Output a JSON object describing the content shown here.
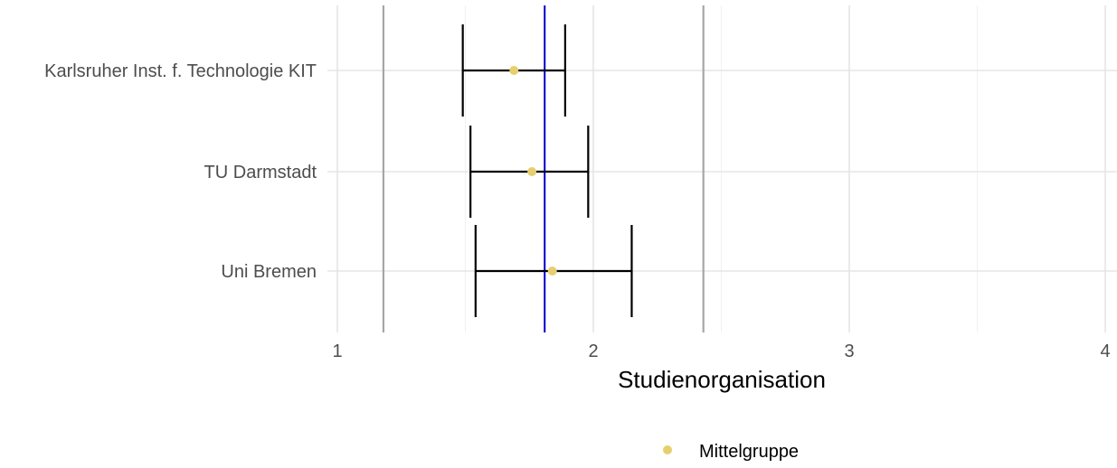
{
  "chart_data": {
    "type": "errorbar",
    "title": "",
    "xlabel": "Studienorganisation",
    "ylabel": "",
    "xlim": [
      1,
      4
    ],
    "x_ticks": [
      1,
      2,
      3,
      4
    ],
    "x_tick_labels": [
      "1",
      "2",
      "3",
      "4"
    ],
    "categories": [
      "Karlsruher Inst. f. Technologie KIT",
      "TU Darmstadt",
      "Uni Bremen"
    ],
    "series": [
      {
        "name": "Mittelgruppe",
        "color": "#e6cf6e",
        "points": [
          {
            "category": "Karlsruher Inst. f. Technologie KIT",
            "mean": 1.69,
            "lower": 1.49,
            "upper": 1.89
          },
          {
            "category": "TU Darmstadt",
            "mean": 1.76,
            "lower": 1.52,
            "upper": 1.98
          },
          {
            "category": "Uni Bremen",
            "mean": 1.84,
            "lower": 1.54,
            "upper": 2.15
          }
        ]
      }
    ],
    "reference_lines": [
      {
        "x": 1.81,
        "color": "#0000cc"
      },
      {
        "x": 1.18,
        "color": "#a6a6a6"
      },
      {
        "x": 2.43,
        "color": "#a6a6a6"
      }
    ],
    "grid": true,
    "legend_position": "bottom"
  }
}
